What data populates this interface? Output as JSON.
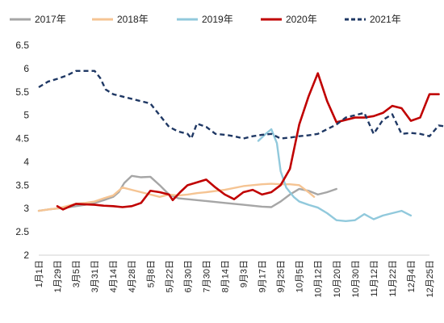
{
  "chart_data": {
    "type": "line",
    "title": "",
    "xlabel": "",
    "ylabel": "",
    "categories": [
      "1月1日",
      "1月29日",
      "3月5日",
      "3月31日",
      "4月14日",
      "4月28日",
      "5月8日",
      "5月22日",
      "6月30日",
      "7月30日",
      "8月14日",
      "9月3日",
      "9月17日",
      "9月25日",
      "10月5日",
      "10月12日",
      "10月20日",
      "10月30日",
      "11月12日",
      "11月22日",
      "12月4日",
      "12月25日"
    ],
    "ylim": [
      2,
      6.5
    ],
    "yticks": [
      "2",
      "2.5",
      "3",
      "3.5",
      "4",
      "4.5",
      "5",
      "5.5",
      "6",
      "6.5"
    ],
    "grid": false,
    "legend_position": "top",
    "series": [
      {
        "name": "2017年",
        "color": "#a6a6a6",
        "style": "solid",
        "points": [
          [
            0.0,
            2.95
          ],
          [
            0.5,
            2.98
          ],
          [
            1.0,
            3.0
          ],
          [
            1.5,
            3.02
          ],
          [
            2.0,
            3.05
          ],
          [
            2.5,
            3.08
          ],
          [
            3.0,
            3.12
          ],
          [
            3.5,
            3.18
          ],
          [
            4.0,
            3.25
          ],
          [
            4.3,
            3.35
          ],
          [
            4.6,
            3.55
          ],
          [
            5.0,
            3.7
          ],
          [
            5.5,
            3.67
          ],
          [
            6.0,
            3.68
          ],
          [
            6.5,
            3.5
          ],
          [
            7.0,
            3.3
          ],
          [
            7.5,
            3.22
          ],
          [
            8.0,
            3.2
          ],
          [
            9.0,
            3.16
          ],
          [
            10.0,
            3.12
          ],
          [
            11.0,
            3.08
          ],
          [
            12.0,
            3.04
          ],
          [
            12.5,
            3.03
          ],
          [
            13.0,
            3.15
          ],
          [
            13.5,
            3.3
          ],
          [
            14.0,
            3.42
          ],
          [
            14.5,
            3.38
          ],
          [
            15.0,
            3.3
          ],
          [
            15.5,
            3.35
          ],
          [
            16.0,
            3.42
          ]
        ]
      },
      {
        "name": "2018年",
        "color": "#f5c493",
        "style": "solid",
        "points": [
          [
            0.0,
            2.95
          ],
          [
            0.5,
            2.98
          ],
          [
            1.0,
            3.0
          ],
          [
            1.5,
            3.05
          ],
          [
            2.0,
            3.1
          ],
          [
            2.5,
            3.12
          ],
          [
            3.0,
            3.15
          ],
          [
            3.5,
            3.22
          ],
          [
            4.0,
            3.28
          ],
          [
            4.5,
            3.45
          ],
          [
            5.0,
            3.4
          ],
          [
            5.5,
            3.35
          ],
          [
            6.0,
            3.3
          ],
          [
            6.5,
            3.25
          ],
          [
            7.0,
            3.3
          ],
          [
            7.5,
            3.28
          ],
          [
            8.0,
            3.3
          ],
          [
            8.5,
            3.33
          ],
          [
            9.0,
            3.35
          ],
          [
            10.0,
            3.4
          ],
          [
            11.0,
            3.48
          ],
          [
            11.5,
            3.5
          ],
          [
            12.0,
            3.52
          ],
          [
            12.5,
            3.53
          ],
          [
            13.0,
            3.52
          ],
          [
            13.5,
            3.52
          ],
          [
            14.0,
            3.5
          ],
          [
            14.5,
            3.35
          ],
          [
            14.8,
            3.25
          ]
        ]
      },
      {
        "name": "2019年",
        "color": "#91c9dc",
        "style": "solid",
        "points": [
          [
            11.8,
            4.45
          ],
          [
            12.2,
            4.6
          ],
          [
            12.5,
            4.7
          ],
          [
            12.8,
            4.4
          ],
          [
            13.0,
            3.8
          ],
          [
            13.3,
            3.45
          ],
          [
            13.7,
            3.25
          ],
          [
            14.0,
            3.15
          ],
          [
            14.5,
            3.08
          ],
          [
            15.0,
            3.02
          ],
          [
            15.5,
            2.9
          ],
          [
            16.0,
            2.75
          ],
          [
            16.5,
            2.73
          ],
          [
            17.0,
            2.75
          ],
          [
            17.5,
            2.88
          ],
          [
            18.0,
            2.77
          ],
          [
            18.5,
            2.85
          ],
          [
            19.0,
            2.9
          ],
          [
            19.5,
            2.95
          ],
          [
            20.0,
            2.85
          ]
        ]
      },
      {
        "name": "2020年",
        "color": "#c00000",
        "style": "solid",
        "points": [
          [
            1.0,
            3.05
          ],
          [
            1.3,
            2.98
          ],
          [
            1.7,
            3.05
          ],
          [
            2.0,
            3.1
          ],
          [
            2.5,
            3.09
          ],
          [
            3.0,
            3.08
          ],
          [
            3.5,
            3.06
          ],
          [
            4.0,
            3.05
          ],
          [
            4.5,
            3.03
          ],
          [
            5.0,
            3.05
          ],
          [
            5.5,
            3.12
          ],
          [
            6.0,
            3.38
          ],
          [
            6.5,
            3.35
          ],
          [
            7.0,
            3.3
          ],
          [
            7.2,
            3.18
          ],
          [
            7.6,
            3.35
          ],
          [
            8.0,
            3.5
          ],
          [
            8.5,
            3.56
          ],
          [
            9.0,
            3.62
          ],
          [
            9.5,
            3.45
          ],
          [
            10.0,
            3.3
          ],
          [
            10.5,
            3.2
          ],
          [
            11.0,
            3.35
          ],
          [
            11.5,
            3.4
          ],
          [
            12.0,
            3.3
          ],
          [
            12.5,
            3.35
          ],
          [
            13.0,
            3.5
          ],
          [
            13.5,
            3.85
          ],
          [
            14.0,
            4.8
          ],
          [
            14.5,
            5.4
          ],
          [
            15.0,
            5.9
          ],
          [
            15.5,
            5.3
          ],
          [
            16.0,
            4.85
          ],
          [
            16.5,
            4.9
          ],
          [
            17.0,
            4.95
          ],
          [
            17.5,
            4.95
          ],
          [
            18.0,
            4.98
          ],
          [
            18.5,
            5.05
          ],
          [
            19.0,
            5.2
          ],
          [
            19.5,
            5.15
          ],
          [
            20.0,
            4.88
          ],
          [
            20.5,
            4.95
          ],
          [
            21.0,
            5.45
          ],
          [
            21.5,
            5.45
          ]
        ]
      },
      {
        "name": "2021年",
        "color": "#1f3864",
        "style": "dashed",
        "points": [
          [
            0.0,
            5.6
          ],
          [
            0.5,
            5.72
          ],
          [
            1.0,
            5.78
          ],
          [
            1.5,
            5.85
          ],
          [
            2.0,
            5.95
          ],
          [
            2.5,
            5.95
          ],
          [
            3.0,
            5.95
          ],
          [
            3.3,
            5.8
          ],
          [
            3.6,
            5.55
          ],
          [
            4.0,
            5.45
          ],
          [
            4.5,
            5.4
          ],
          [
            5.0,
            5.35
          ],
          [
            5.5,
            5.3
          ],
          [
            6.0,
            5.25
          ],
          [
            6.5,
            5.0
          ],
          [
            7.0,
            4.75
          ],
          [
            7.5,
            4.65
          ],
          [
            8.0,
            4.6
          ],
          [
            8.2,
            4.5
          ],
          [
            8.5,
            4.82
          ],
          [
            9.0,
            4.75
          ],
          [
            9.5,
            4.6
          ],
          [
            10.0,
            4.58
          ],
          [
            10.5,
            4.55
          ],
          [
            11.0,
            4.5
          ],
          [
            11.5,
            4.55
          ],
          [
            12.0,
            4.58
          ],
          [
            12.5,
            4.6
          ],
          [
            13.0,
            4.5
          ],
          [
            13.5,
            4.52
          ],
          [
            14.0,
            4.55
          ],
          [
            14.5,
            4.57
          ],
          [
            15.0,
            4.6
          ],
          [
            15.5,
            4.7
          ],
          [
            16.0,
            4.8
          ],
          [
            16.5,
            4.95
          ],
          [
            17.0,
            5.0
          ],
          [
            17.5,
            5.05
          ],
          [
            18.0,
            4.6
          ],
          [
            18.5,
            4.9
          ],
          [
            19.0,
            5.02
          ],
          [
            19.5,
            4.6
          ],
          [
            20.0,
            4.62
          ],
          [
            20.5,
            4.6
          ],
          [
            21.0,
            4.55
          ],
          [
            21.5,
            4.78
          ],
          [
            22.0,
            4.75
          ]
        ]
      }
    ]
  }
}
